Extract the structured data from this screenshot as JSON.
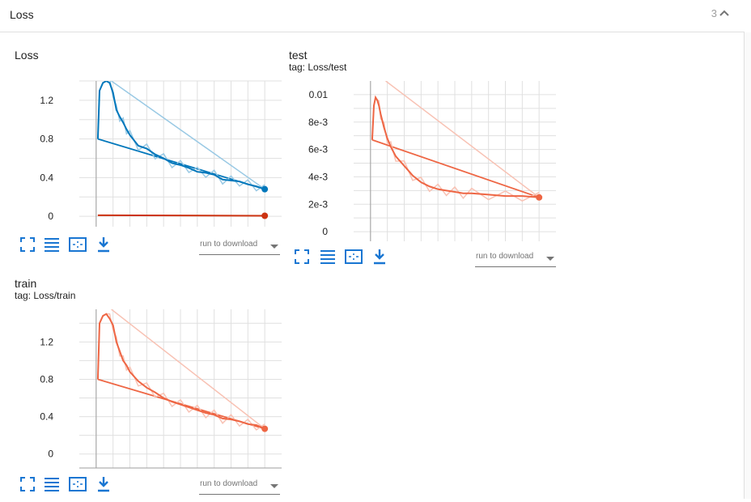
{
  "header": {
    "title": "Loss",
    "count": "3"
  },
  "cards": [
    {
      "title": "Loss",
      "tag": ""
    },
    {
      "title": "test",
      "tag": "tag: Loss/test"
    },
    {
      "title": "train",
      "tag": "tag: Loss/train"
    }
  ],
  "toolbar": {
    "run_to_download": "run to download"
  },
  "colors": {
    "blue": "#0077bb",
    "blue_light": "#aad4ee",
    "red": "#cc3311",
    "orange": "#ee6644",
    "orange_light": "#f8c8bb",
    "grid": "#e0e0e0",
    "axis": "#9e9e9e"
  },
  "icons": [
    "fit-domain-icon",
    "toggle-log-scale-icon",
    "fit-to-data-icon",
    "download-icon",
    "chevron-up-icon",
    "dropdown-arrow-icon"
  ],
  "chart_data": [
    {
      "type": "line",
      "title": "Loss",
      "xlabel": "",
      "ylabel": "",
      "xlim": [
        -10,
        110
      ],
      "ylim": [
        -0.15,
        1.4
      ],
      "xticks": [
        "0",
        "20",
        "40",
        "60",
        "80",
        "100"
      ],
      "yticks": [
        "0",
        "0.4",
        "0.8",
        "1.2"
      ],
      "grid": true,
      "series": [
        {
          "name": "",
          "color": "#0077bb",
          "smoothed": true,
          "x": [
            1,
            2,
            4,
            6,
            8,
            10,
            12,
            14,
            16,
            18,
            20,
            25,
            30,
            35,
            40,
            45,
            50,
            55,
            60,
            65,
            70,
            75,
            80,
            85,
            90,
            95,
            100
          ],
          "y": [
            0.8,
            1.3,
            1.38,
            1.4,
            1.38,
            1.28,
            1.1,
            1.03,
            0.97,
            0.9,
            0.84,
            0.73,
            0.7,
            0.64,
            0.6,
            0.55,
            0.53,
            0.5,
            0.46,
            0.45,
            0.43,
            0.38,
            0.37,
            0.36,
            0.33,
            0.31,
            0.28
          ],
          "final_line": [
            [
              1,
              0.8
            ],
            [
              100,
              0.28
            ]
          ]
        },
        {
          "name": "",
          "color": "#cc3311",
          "smoothed": true,
          "x": [
            1,
            100
          ],
          "y": [
            0.01,
            0.005
          ]
        }
      ]
    },
    {
      "type": "line",
      "title": "test",
      "xlabel": "",
      "ylabel": "",
      "xlim": [
        -10,
        110
      ],
      "ylim": [
        -0.001,
        0.011
      ],
      "xticks": [
        "0",
        "20",
        "40",
        "60",
        "80",
        "100"
      ],
      "yticks": [
        "0",
        "2e-3",
        "4e-3",
        "6e-3",
        "8e-3",
        "0.01"
      ],
      "grid": true,
      "series": [
        {
          "name": "",
          "color": "#ee6644",
          "smoothed": true,
          "x": [
            1,
            2,
            3,
            4,
            5,
            6,
            8,
            10,
            12,
            15,
            20,
            25,
            30,
            35,
            40,
            45,
            50,
            55,
            60,
            70,
            80,
            90,
            100
          ],
          "y": [
            0.0067,
            0.0092,
            0.0098,
            0.0096,
            0.0092,
            0.0086,
            0.0076,
            0.0068,
            0.0062,
            0.0055,
            0.0048,
            0.0041,
            0.0036,
            0.0033,
            0.0031,
            0.003,
            0.0029,
            0.0028,
            0.0028,
            0.0027,
            0.0026,
            0.0026,
            0.0025
          ],
          "final_line": [
            [
              1,
              0.0067
            ],
            [
              100,
              0.0025
            ]
          ]
        }
      ]
    },
    {
      "type": "line",
      "title": "train",
      "xlabel": "",
      "ylabel": "",
      "xlim": [
        -10,
        110
      ],
      "ylim": [
        -0.15,
        1.55
      ],
      "xticks": [
        "0",
        "20",
        "40",
        "60",
        "80",
        "100"
      ],
      "yticks": [
        "0",
        "0.4",
        "0.8",
        "1.2"
      ],
      "grid": true,
      "series": [
        {
          "name": "",
          "color": "#ee6644",
          "smoothed": true,
          "x": [
            1,
            2,
            4,
            6,
            8,
            10,
            12,
            14,
            16,
            18,
            20,
            25,
            30,
            35,
            40,
            45,
            50,
            55,
            60,
            65,
            70,
            75,
            80,
            85,
            90,
            95,
            100
          ],
          "y": [
            0.8,
            1.4,
            1.48,
            1.5,
            1.45,
            1.38,
            1.2,
            1.1,
            1.0,
            0.95,
            0.88,
            0.78,
            0.71,
            0.66,
            0.6,
            0.56,
            0.53,
            0.5,
            0.47,
            0.44,
            0.42,
            0.38,
            0.37,
            0.35,
            0.32,
            0.31,
            0.27
          ],
          "final_line": [
            [
              1,
              0.8
            ],
            [
              100,
              0.27
            ]
          ]
        }
      ]
    }
  ]
}
